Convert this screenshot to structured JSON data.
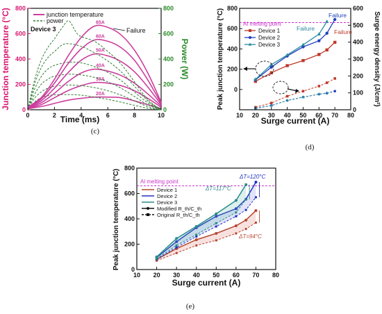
{
  "chart_data": [
    {
      "id": "c",
      "type": "line",
      "panel_label": "(c)",
      "xlabel": "Time (ms)",
      "ylabel": "Junction temperature (°C)",
      "y2label": "Power (W)",
      "xlim": [
        0,
        10
      ],
      "ylim": [
        0,
        800
      ],
      "y2lim": [
        0,
        800
      ],
      "xticks": [
        "0",
        "2",
        "4",
        "6",
        "8",
        "10"
      ],
      "yticks": [
        "0",
        "200",
        "400",
        "600",
        "800"
      ],
      "y2ticks": [
        "0",
        "200",
        "400",
        "600",
        "800"
      ],
      "legend": [
        "junction temperature",
        "power"
      ],
      "annotations": {
        "device": "Device 3",
        "failure": "Failure"
      },
      "colors": {
        "temperature": "#cc3d9e",
        "power": "#2e7d32",
        "left_axis": "#d6166e",
        "right_axis": "#2a8a2a"
      },
      "series": [
        {
          "name": "20A",
          "temperature": {
            "x": [
              0,
              1,
              2,
              3,
              4,
              5,
              6,
              7,
              8,
              9,
              10
            ],
            "y": [
              8,
              25,
              50,
              75,
              90,
              100,
              100,
              95,
              70,
              40,
              10
            ]
          },
          "power": {
            "x": [
              0,
              0.5,
              1,
              1.5,
              2,
              3,
              4,
              5,
              6,
              7,
              8,
              9,
              10
            ],
            "y": [
              0,
              60,
              95,
              110,
              118,
              120,
              115,
              100,
              82,
              60,
              35,
              12,
              0
            ]
          }
        },
        {
          "name": "30A",
          "temperature": {
            "x": [
              0,
              1,
              2,
              3,
              4,
              5,
              6,
              7,
              8,
              9,
              10
            ],
            "y": [
              12,
              40,
              95,
              150,
              190,
              215,
              210,
              190,
              150,
              90,
              20
            ]
          },
          "power": {
            "x": [
              0,
              0.5,
              1,
              1.5,
              2,
              3,
              4,
              5,
              6,
              7,
              8,
              9,
              10
            ],
            "y": [
              0,
              90,
              140,
              170,
              185,
              195,
              190,
              175,
              150,
              115,
              70,
              25,
              0
            ]
          }
        },
        {
          "name": "40A",
          "temperature": {
            "x": [
              0,
              1,
              2,
              3,
              4,
              5,
              6,
              7,
              8,
              9,
              10
            ],
            "y": [
              15,
              55,
              130,
              220,
              290,
              320,
              305,
              270,
              210,
              125,
              30
            ]
          },
          "power": {
            "x": [
              0,
              0.5,
              1,
              1.5,
              2,
              3,
              4,
              5,
              6,
              7,
              8,
              9,
              10
            ],
            "y": [
              0,
              120,
              200,
              240,
              265,
              280,
              275,
              255,
              220,
              170,
              105,
              40,
              0
            ]
          }
        },
        {
          "name": "50A",
          "temperature": {
            "x": [
              0,
              1,
              2,
              3,
              4,
              5,
              6,
              7,
              8,
              9,
              10
            ],
            "y": [
              18,
              70,
              170,
              290,
              390,
              440,
              425,
              380,
              300,
              180,
              40
            ]
          },
          "power": {
            "x": [
              0,
              0.5,
              1,
              1.5,
              2,
              3,
              4,
              5,
              6,
              7,
              8,
              9,
              10
            ],
            "y": [
              0,
              160,
              260,
              320,
              350,
              375,
              370,
              340,
              295,
              230,
              140,
              55,
              0
            ]
          }
        },
        {
          "name": "60A",
          "temperature": {
            "x": [
              0,
              1,
              2,
              3,
              4,
              5,
              6,
              7,
              8,
              9,
              10
            ],
            "y": [
              20,
              85,
              210,
              360,
              480,
              550,
              540,
              490,
              390,
              235,
              50
            ]
          },
          "power": {
            "x": [
              0,
              0.5,
              1,
              1.5,
              2,
              2.8,
              4,
              5,
              6,
              7,
              8,
              9,
              10
            ],
            "y": [
              0,
              200,
              330,
              410,
              460,
              520,
              500,
              450,
              385,
              300,
              185,
              70,
              0
            ]
          }
        },
        {
          "name": "65A",
          "temperature": {
            "x": [
              0,
              1,
              2,
              3,
              4,
              5,
              6,
              7,
              8,
              9,
              10
            ],
            "y": [
              22,
              95,
              240,
              420,
              570,
              660,
              650,
              590,
              470,
              290,
              60
            ]
          },
          "power": {
            "x": [
              0,
              0.5,
              1,
              1.5,
              2,
              2.6,
              3.1,
              3.8,
              5,
              6,
              7,
              8,
              9,
              10
            ],
            "y": [
              0,
              230,
              390,
              490,
              560,
              650,
              700,
              590,
              540,
              460,
              360,
              220,
              80,
              0
            ]
          }
        }
      ]
    },
    {
      "id": "d",
      "type": "line",
      "panel_label": "(d)",
      "xlabel": "Surge current (A)",
      "ylabel": "Peak junction temperature (°C)",
      "y2label": "Surge energy density (J/cm²)",
      "xlim": [
        10,
        80
      ],
      "ylim": [
        -200,
        800
      ],
      "y2lim": [
        0,
        600
      ],
      "xticks": [
        "10",
        "20",
        "30",
        "40",
        "50",
        "60",
        "70",
        "80"
      ],
      "yticks": [
        "0",
        "200",
        "400",
        "600",
        "800"
      ],
      "y2ticks": [
        "0",
        "100",
        "200",
        "300",
        "400",
        "500",
        "600"
      ],
      "reference_line": {
        "label": "Al melting point",
        "y": 660
      },
      "annotations": {
        "failure_d2": "Failure",
        "failure_d3": "Failure",
        "failure_d1": "Failure"
      },
      "colors": {
        "device1": "#c0392b",
        "device2": "#1f3fbf",
        "device3": "#2a8aa0",
        "reference": "#cc33cc"
      },
      "x": [
        20,
        30,
        40,
        50,
        60,
        65,
        70
      ],
      "series": [
        {
          "name": "Device 1",
          "peak_temperature": [
            80,
            165,
            235,
            285,
            345,
            390,
            465
          ],
          "energy_density": [
            15,
            40,
            80,
            110,
            140,
            160,
            185
          ]
        },
        {
          "name": "Device 2",
          "peak_temperature": [
            95,
            220,
            330,
            420,
            480,
            555,
            690
          ],
          "energy_density": [
            8,
            25,
            55,
            75,
            92,
            98,
            110
          ]
        },
        {
          "name": "Device 3",
          "peak_temperature": [
            100,
            245,
            340,
            440,
            545,
            670,
            null
          ],
          "energy_density": [
            10,
            25,
            55,
            75,
            92,
            100,
            null
          ]
        }
      ]
    },
    {
      "id": "e",
      "type": "line",
      "panel_label": "(e)",
      "xlabel": "Surge current (A)",
      "ylabel": "Peak junction temperature (°C)",
      "xlim": [
        10,
        80
      ],
      "ylim": [
        0,
        800
      ],
      "xticks": [
        "10",
        "20",
        "30",
        "40",
        "50",
        "60",
        "70",
        "80"
      ],
      "yticks": [
        "0",
        "200",
        "400",
        "600",
        "800"
      ],
      "reference_line": {
        "label": "Al melting point",
        "y": 660
      },
      "legend": [
        "Device 1",
        "Device 2",
        "Device 3",
        "Modified R_th/C_th",
        "Original R_th/C_th"
      ],
      "annotations": {
        "dt_d3": "ΔT=117°C",
        "dt_d2": "ΔT=120°C",
        "dt_d1": "ΔT=94°C"
      },
      "colors": {
        "device1": "#b5462e",
        "device2": "#2030c0",
        "device3": "#2a8a8a",
        "reference": "#cc33cc"
      },
      "x": [
        20,
        30,
        40,
        50,
        60,
        65,
        70
      ],
      "series": [
        {
          "name": "Device 1",
          "modified": [
            80,
            165,
            235,
            285,
            345,
            390,
            465
          ],
          "original": [
            70,
            130,
            190,
            230,
            285,
            320,
            370
          ]
        },
        {
          "name": "Device 2",
          "modified": [
            95,
            220,
            330,
            420,
            480,
            555,
            690
          ],
          "original": [
            80,
            175,
            260,
            340,
            420,
            470,
            570
          ]
        },
        {
          "name": "Device 3",
          "modified": [
            100,
            245,
            340,
            440,
            545,
            670,
            null
          ],
          "original": [
            85,
            190,
            275,
            365,
            450,
            553,
            null
          ]
        }
      ]
    }
  ]
}
